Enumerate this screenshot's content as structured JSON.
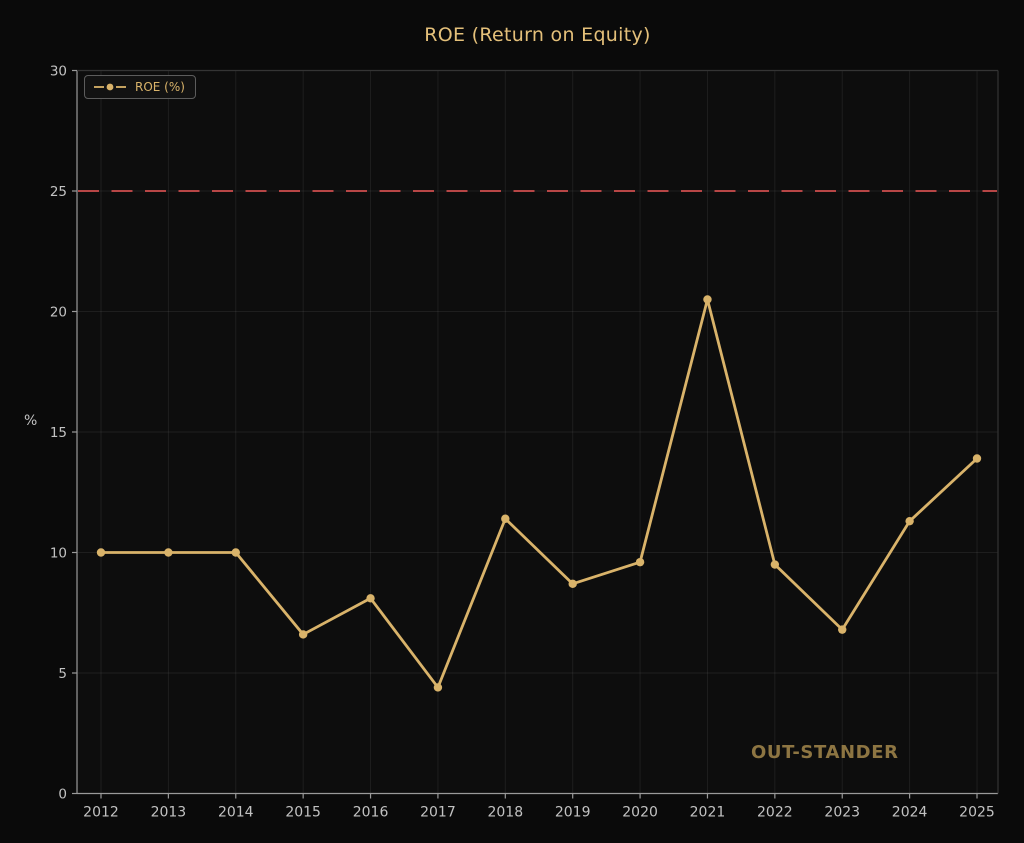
{
  "page": {
    "title": "ROE (Return on Equity)"
  },
  "legend": {
    "label": "ROE (%)"
  },
  "watermark": {
    "text": "OUT-STANDER"
  },
  "colors": {
    "background": "#0a0a0a",
    "plot_background": "#0d0d0d",
    "series_gold": "#d9b36a",
    "threshold_red": "#cf4e4e",
    "tick_label": "#c2c2c2",
    "spine_light": "#9a9a9a",
    "spine_dark": "#343434",
    "grid": "rgba(255,255,255,0.07)",
    "title_gold": "#e4c07a",
    "watermark_gold": "#8d7542"
  },
  "chart_data": {
    "type": "line",
    "title": "ROE (Return on Equity)",
    "xlabel": "",
    "ylabel": "%",
    "x": [
      2012,
      2013,
      2014,
      2015,
      2016,
      2017,
      2018,
      2019,
      2020,
      2021,
      2022,
      2023,
      2024,
      2025
    ],
    "series": [
      {
        "name": "ROE (%)",
        "values": [
          10.0,
          10.0,
          10.0,
          6.6,
          8.1,
          4.4,
          11.4,
          8.7,
          9.6,
          20.5,
          9.5,
          6.8,
          11.3,
          13.9
        ],
        "color": "#d9b36a",
        "marker": "circle"
      }
    ],
    "threshold_line": {
      "value": 25,
      "style": "dashed",
      "color": "#cf4e4e"
    },
    "ylim": [
      0,
      30
    ],
    "yticks": [
      0,
      5,
      10,
      15,
      20,
      25,
      30
    ],
    "grid": true,
    "legend_position": "upper-left"
  }
}
